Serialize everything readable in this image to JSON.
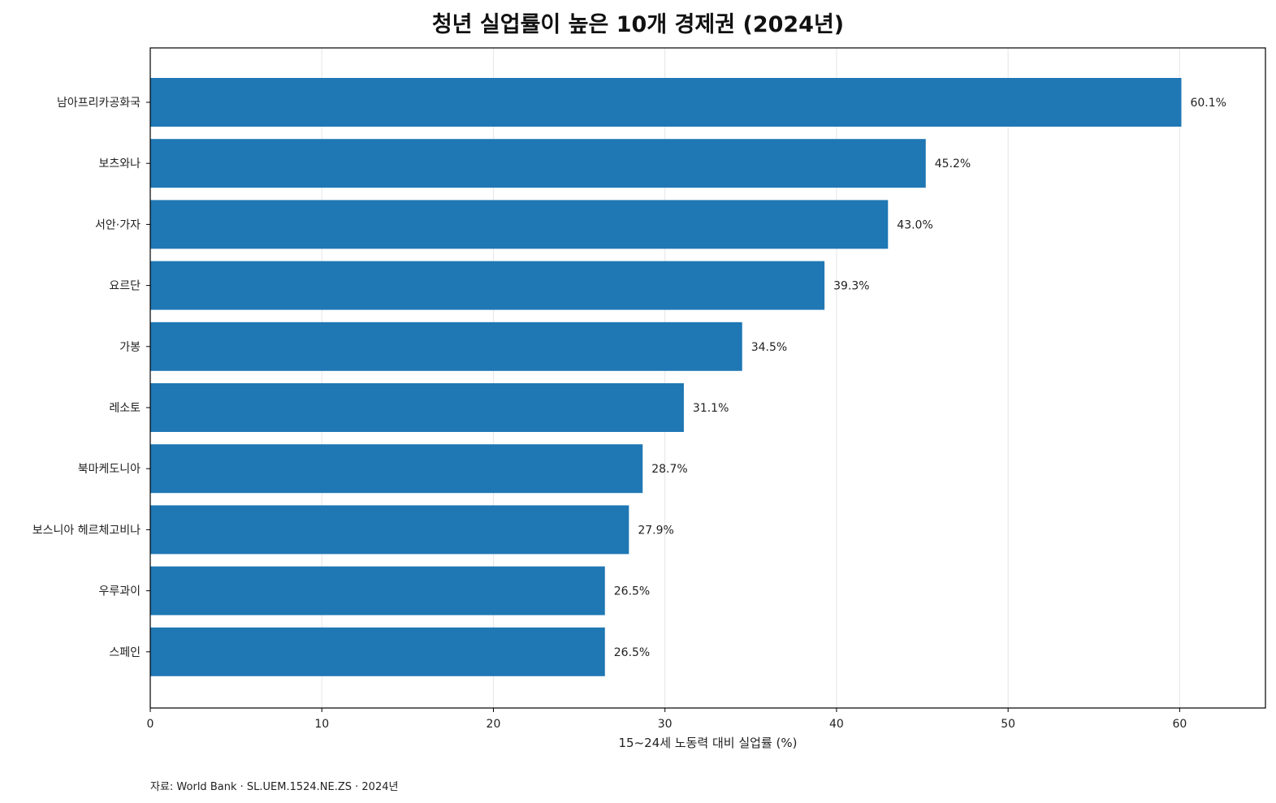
{
  "chart_data": {
    "type": "bar",
    "orientation": "horizontal",
    "title": "청년 실업률이 높은 10개 경제권 (2024년)",
    "xlabel": "15~24세 노동력 대비 실업률 (%)",
    "ylabel": "",
    "categories": [
      "남아프리카공화국",
      "보츠와나",
      "서안·가자",
      "요르단",
      "가봉",
      "레소토",
      "북마케도니아",
      "보스니아 헤르체고비나",
      "우루과이",
      "스페인"
    ],
    "values": [
      60.1,
      45.2,
      43.0,
      39.3,
      34.5,
      31.1,
      28.7,
      27.9,
      26.5,
      26.5
    ],
    "data_labels": [
      "60.1%",
      "45.2%",
      "43.0%",
      "39.3%",
      "34.5%",
      "31.1%",
      "28.7%",
      "27.9%",
      "26.5%",
      "26.5%"
    ],
    "xlim": [
      0,
      65
    ],
    "xticks": [
      0,
      10,
      20,
      30,
      40,
      50,
      60
    ],
    "grid": "x",
    "bar_color": "#1f77b4",
    "source": "자료: World Bank · SL.UEM.1524.NE.ZS · 2024년"
  }
}
